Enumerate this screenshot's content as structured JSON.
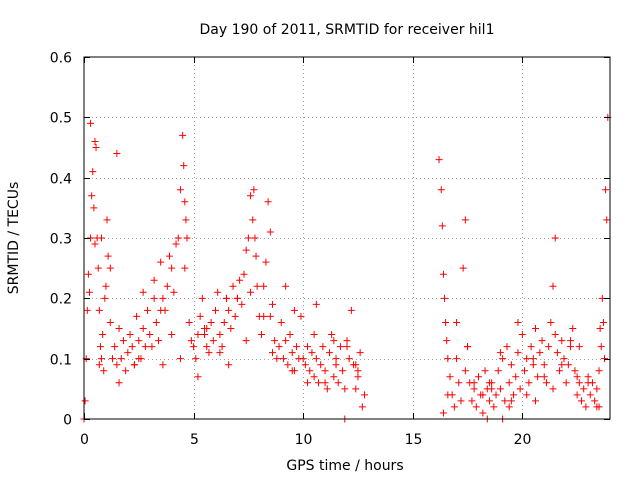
{
  "chart_data": {
    "type": "scatter",
    "title": "Day 190 of 2011, SRMTID for receiver hil1",
    "xlabel": "GPS time / hours",
    "ylabel": "SRMTID / TECUs",
    "xlim": [
      0,
      24
    ],
    "ylim": [
      0,
      0.6
    ],
    "xticks": [
      0,
      5,
      10,
      15,
      20
    ],
    "xtick_labels": [
      "0",
      "5",
      "10",
      "15",
      "20"
    ],
    "yticks": [
      0,
      0.1,
      0.2,
      0.3,
      0.4,
      0.5,
      0.6
    ],
    "ytick_labels": [
      "0",
      "0.1",
      "0.2",
      "0.3",
      "0.4",
      "0.5",
      "0.6"
    ],
    "grid": true,
    "marker": "plus",
    "color": "#ff0000",
    "series": [
      {
        "name": "SRMTID",
        "x": [
          0.05,
          0.1,
          0.15,
          0.2,
          0.25,
          0.3,
          0.35,
          0.4,
          0.45,
          0.5,
          0.55,
          0.6,
          0.65,
          0.7,
          0.75,
          0.8,
          0.85,
          0.9,
          0.95,
          1.0,
          1.05,
          1.1,
          1.2,
          1.3,
          1.4,
          1.5,
          1.6,
          1.7,
          1.8,
          1.9,
          2.0,
          2.1,
          2.2,
          2.3,
          2.4,
          2.5,
          2.6,
          2.7,
          2.8,
          2.9,
          3.0,
          3.1,
          3.2,
          3.3,
          3.4,
          3.5,
          3.6,
          3.7,
          3.8,
          3.9,
          4.0,
          4.1,
          4.2,
          4.3,
          4.4,
          4.5,
          4.55,
          4.6,
          4.65,
          4.7,
          4.8,
          4.9,
          5.0,
          5.1,
          5.2,
          5.3,
          5.4,
          5.5,
          5.6,
          5.7,
          5.8,
          5.9,
          6.0,
          6.1,
          6.2,
          6.3,
          6.4,
          6.5,
          6.6,
          6.7,
          6.8,
          6.9,
          7.0,
          7.1,
          7.2,
          7.3,
          7.4,
          7.5,
          7.6,
          7.7,
          7.75,
          7.8,
          7.85,
          7.9,
          8.0,
          8.1,
          8.2,
          8.3,
          8.4,
          8.5,
          8.6,
          8.7,
          8.8,
          8.9,
          9.0,
          9.1,
          9.2,
          9.3,
          9.4,
          9.5,
          9.6,
          9.7,
          9.8,
          9.9,
          10.0,
          10.1,
          10.2,
          10.3,
          10.4,
          10.5,
          10.6,
          10.7,
          10.8,
          10.9,
          11.0,
          11.1,
          11.2,
          11.3,
          11.4,
          11.5,
          11.6,
          11.7,
          11.8,
          11.9,
          12.0,
          12.1,
          12.2,
          12.3,
          12.4,
          12.5,
          12.6,
          12.7,
          12.8,
          16.2,
          16.3,
          16.35,
          16.4,
          16.45,
          16.5,
          16.55,
          16.6,
          16.7,
          16.8,
          16.9,
          17.0,
          17.1,
          17.2,
          17.3,
          17.4,
          17.5,
          17.6,
          17.7,
          17.8,
          17.9,
          18.0,
          18.1,
          18.2,
          18.3,
          18.4,
          18.5,
          18.6,
          18.7,
          18.8,
          18.9,
          19.0,
          19.1,
          19.2,
          19.3,
          19.4,
          19.5,
          19.6,
          19.7,
          19.8,
          19.9,
          20.0,
          20.1,
          20.2,
          20.3,
          20.4,
          20.5,
          20.6,
          20.7,
          20.8,
          20.9,
          21.0,
          21.1,
          21.2,
          21.3,
          21.4,
          21.5,
          21.6,
          21.7,
          21.8,
          21.9,
          22.0,
          22.1,
          22.2,
          22.3,
          22.4,
          22.5,
          22.6,
          22.7,
          22.8,
          22.9,
          23.0,
          23.1,
          23.2,
          23.3,
          23.4,
          23.5,
          23.55,
          23.6,
          23.65,
          23.7,
          23.75,
          23.8,
          23.85,
          23.9,
          0.3,
          0.5,
          0.8,
          1.2,
          1.6,
          2.3,
          2.7,
          3.2,
          3.6,
          4.0,
          4.4,
          5.2,
          5.6,
          6.2,
          6.6,
          7.0,
          7.4,
          8.2,
          8.6,
          9.2,
          9.6,
          10.2,
          10.6,
          11.0,
          11.4,
          12.0,
          12.4,
          16.6,
          17.0,
          17.4,
          17.8,
          18.2,
          18.6,
          19.0,
          19.4,
          19.8,
          20.2,
          20.6,
          21.0,
          21.4,
          21.8,
          22.2,
          22.6,
          23.0,
          23.4,
          0.7,
          1.5,
          2.5,
          3.5,
          4.6,
          5.5,
          6.5,
          7.6,
          8.5,
          9.5,
          10.5,
          11.5,
          12.5,
          16.4,
          17.5,
          18.5,
          19.5,
          20.5,
          21.5,
          22.5,
          23.5,
          0.0,
          11.9,
          18.4,
          19.1
        ],
        "y": [
          0.03,
          0.1,
          0.18,
          0.24,
          0.21,
          0.3,
          0.37,
          0.41,
          0.35,
          0.29,
          0.45,
          0.3,
          0.25,
          0.18,
          0.12,
          0.1,
          0.14,
          0.08,
          0.2,
          0.22,
          0.33,
          0.27,
          0.16,
          0.1,
          0.12,
          0.09,
          0.15,
          0.1,
          0.13,
          0.08,
          0.11,
          0.14,
          0.12,
          0.09,
          0.17,
          0.13,
          0.1,
          0.15,
          0.12,
          0.18,
          0.14,
          0.12,
          0.2,
          0.16,
          0.13,
          0.26,
          0.2,
          0.18,
          0.22,
          0.27,
          0.25,
          0.21,
          0.29,
          0.3,
          0.38,
          0.47,
          0.42,
          0.36,
          0.33,
          0.3,
          0.16,
          0.13,
          0.12,
          0.1,
          0.14,
          0.17,
          0.2,
          0.15,
          0.12,
          0.11,
          0.16,
          0.13,
          0.18,
          0.21,
          0.14,
          0.12,
          0.16,
          0.2,
          0.18,
          0.15,
          0.22,
          0.17,
          0.2,
          0.23,
          0.19,
          0.24,
          0.28,
          0.3,
          0.37,
          0.33,
          0.38,
          0.3,
          0.27,
          0.22,
          0.17,
          0.14,
          0.22,
          0.26,
          0.36,
          0.31,
          0.19,
          0.13,
          0.1,
          0.12,
          0.16,
          0.1,
          0.13,
          0.09,
          0.14,
          0.11,
          0.08,
          0.12,
          0.1,
          0.17,
          0.1,
          0.09,
          0.12,
          0.08,
          0.11,
          0.07,
          0.1,
          0.06,
          0.09,
          0.12,
          0.08,
          0.05,
          0.11,
          0.14,
          0.07,
          0.1,
          0.06,
          0.12,
          0.08,
          0.05,
          0.13,
          0.1,
          0.18,
          0.09,
          0.05,
          0.07,
          0.11,
          0.02,
          0.04,
          0.43,
          0.38,
          0.32,
          0.24,
          0.2,
          0.16,
          0.13,
          0.1,
          0.07,
          0.04,
          0.02,
          0.1,
          0.06,
          0.03,
          0.25,
          0.33,
          0.12,
          0.06,
          0.03,
          0.05,
          0.02,
          0.07,
          0.04,
          0.01,
          0.08,
          0.05,
          0.03,
          0.06,
          0.02,
          0.04,
          0.08,
          0.05,
          0.1,
          0.03,
          0.12,
          0.06,
          0.09,
          0.04,
          0.07,
          0.11,
          0.05,
          0.14,
          0.08,
          0.1,
          0.06,
          0.12,
          0.09,
          0.15,
          0.07,
          0.11,
          0.13,
          0.09,
          0.06,
          0.12,
          0.16,
          0.22,
          0.3,
          0.11,
          0.08,
          0.13,
          0.1,
          0.06,
          0.09,
          0.12,
          0.15,
          0.08,
          0.04,
          0.06,
          0.03,
          0.05,
          0.02,
          0.07,
          0.04,
          0.06,
          0.03,
          0.05,
          0.02,
          0.15,
          0.12,
          0.2,
          0.16,
          0.1,
          0.38,
          0.33,
          0.5,
          0.49,
          0.46,
          0.3,
          0.25,
          0.06,
          0.09,
          0.21,
          0.23,
          0.09,
          0.14,
          0.1,
          0.07,
          0.15,
          0.11,
          0.09,
          0.2,
          0.13,
          0.17,
          0.11,
          0.22,
          0.18,
          0.06,
          0.19,
          0.06,
          0.13,
          0.12,
          0.09,
          0.04,
          0.16,
          0.08,
          0.06,
          0.04,
          0.05,
          0.11,
          0.02,
          0.16,
          0.04,
          0.03,
          0.07,
          0.05,
          0.09,
          0.13,
          0.12,
          0.06,
          0.02,
          0.09,
          0.44,
          0.1,
          0.18,
          0.25,
          0.14,
          0.2,
          0.21,
          0.17,
          0.08,
          0.14,
          0.09,
          0.08,
          0.01,
          0.12,
          0.06,
          0.03,
          0.1,
          0.14,
          0.07,
          0.08,
          0.0,
          0.0,
          0.0,
          0.0
        ]
      }
    ]
  }
}
